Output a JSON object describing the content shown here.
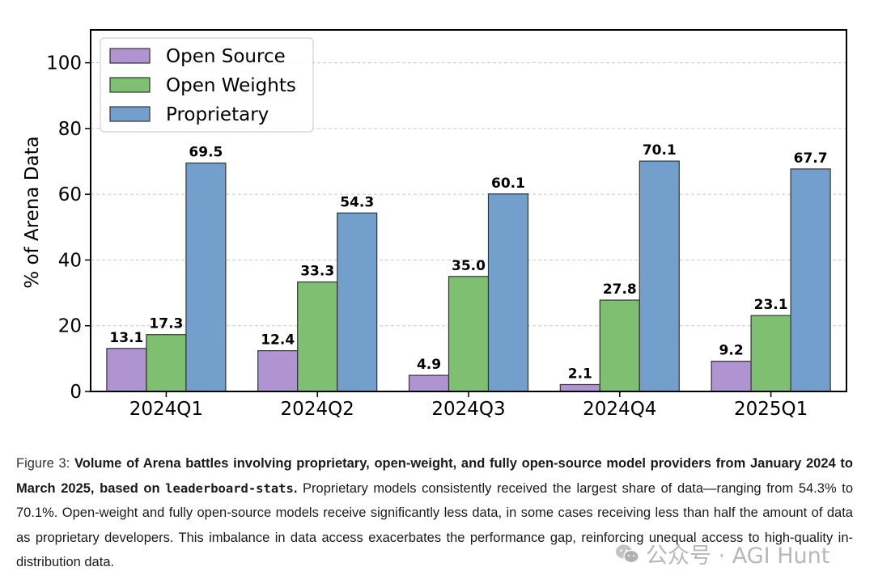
{
  "chart_data": {
    "type": "bar",
    "categories": [
      "2024Q1",
      "2024Q2",
      "2024Q3",
      "2024Q4",
      "2025Q1"
    ],
    "series": [
      {
        "name": "Open Source",
        "color": "#b094d1",
        "values": [
          13.1,
          12.4,
          4.9,
          2.1,
          9.2
        ],
        "labels": [
          "13.1",
          "12.4",
          "4.9",
          "2.1",
          "9.2"
        ]
      },
      {
        "name": "Open Weights",
        "color": "#7fbf72",
        "values": [
          17.3,
          33.3,
          35.0,
          27.8,
          23.1
        ],
        "labels": [
          "17.3",
          "33.3",
          "35.0",
          "27.8",
          "23.1"
        ]
      },
      {
        "name": "Proprietary",
        "color": "#729fcb",
        "values": [
          69.5,
          54.3,
          60.1,
          70.1,
          67.7
        ],
        "labels": [
          "69.5",
          "54.3",
          "60.1",
          "70.1",
          "67.7"
        ]
      }
    ],
    "ylabel": "% of Arena Data",
    "xlabel": "",
    "ylim": [
      0,
      110
    ],
    "yticks": [
      "0",
      "20",
      "40",
      "60",
      "80",
      "100"
    ],
    "grid": "horizontal dashed",
    "legend_position": "top-left"
  },
  "caption": {
    "label": "Figure 3:",
    "bold_before_code": "Volume of Arena battles involving proprietary, open-weight, and fully open-source model providers from January 2024 to March 2025, based on ",
    "code": "leaderboard-stats",
    "bold_after_code": ".",
    "body": " Proprietary models consistently received the largest share of data—ranging from 54.3% to 70.1%. Open-weight and fully open-source models receive significantly less data, in some cases receiving less than half the amount of data as proprietary developers. This imbalance in data access exacerbates the performance gap, reinforcing unequal access to high-quality in-distribution data."
  },
  "watermark": {
    "text": "公众号 · AGI Hunt",
    "icon": "wechat-icon"
  }
}
